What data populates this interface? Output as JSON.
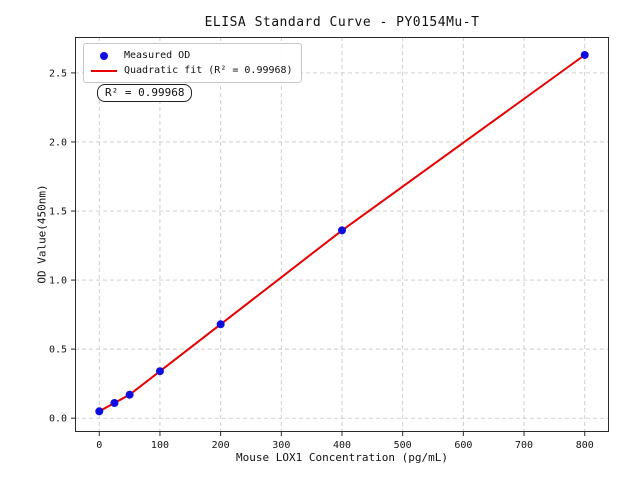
{
  "chart_data": {
    "type": "scatter",
    "title": "ELISA Standard Curve - PY0154Mu-T",
    "xlabel": "Mouse LOX1 Concentration (pg/mL)",
    "ylabel": "OD Value(450nm)",
    "xlim": [
      -40,
      840
    ],
    "ylim": [
      -0.1,
      2.76
    ],
    "x_tick_values": [
      0,
      100,
      200,
      300,
      400,
      500,
      600,
      700,
      800
    ],
    "x_ticks": [
      "0",
      "100",
      "200",
      "300",
      "400",
      "500",
      "600",
      "700",
      "800"
    ],
    "y_tick_values": [
      0.0,
      0.5,
      1.0,
      1.5,
      2.0,
      2.5
    ],
    "y_ticks": [
      "0.0",
      "0.5",
      "1.0",
      "1.5",
      "2.0",
      "2.5"
    ],
    "grid": true,
    "grid_style": "dashed",
    "series": [
      {
        "name": "Measured OD",
        "type": "scatter",
        "color": "#0d0de0",
        "x": [
          0,
          25,
          50,
          100,
          200,
          400,
          800
        ],
        "y": [
          0.05,
          0.11,
          0.17,
          0.34,
          0.68,
          1.36,
          2.63
        ]
      },
      {
        "name": "Quadratic fit (R² = 0.99968)",
        "type": "line",
        "color": "#e60000",
        "x": [
          0,
          25,
          50,
          100,
          200,
          400,
          800
        ],
        "y": [
          0.05,
          0.11,
          0.17,
          0.34,
          0.68,
          1.36,
          2.63
        ]
      }
    ],
    "legend": {
      "position": "upper-left",
      "items": [
        {
          "label": "Measured OD"
        },
        {
          "label": "Quadratic fit (R² = 0.99968)"
        }
      ]
    },
    "annotation": "R² = 0.99968",
    "r_squared_text": "0.99968",
    "colors": {
      "scatter": "#0d0de0",
      "fit_line": "#e60000",
      "grid": "#c9c9c9",
      "spine": "#2b2b2b",
      "background": "#ffffff"
    }
  }
}
